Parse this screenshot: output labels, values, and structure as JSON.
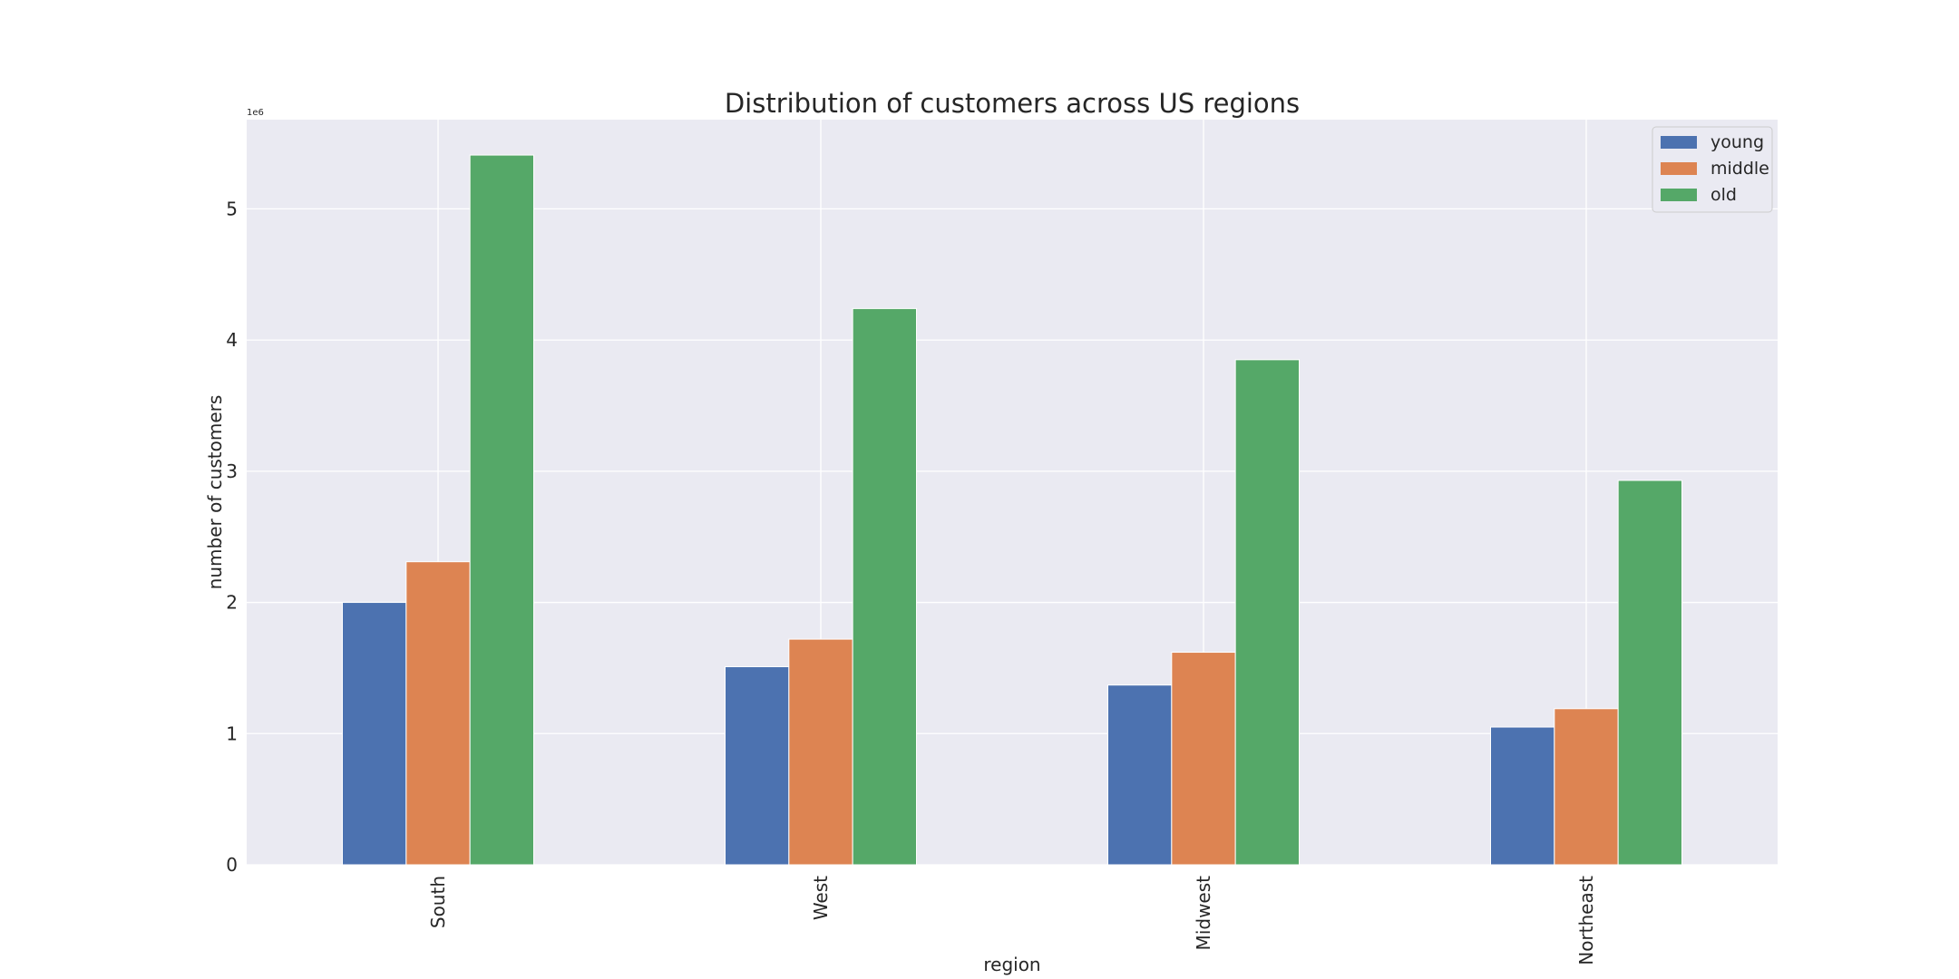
{
  "chart_data": {
    "type": "bar",
    "title": "Distribution of customers across US regions",
    "xlabel": "region",
    "ylabel": "number of customers",
    "y_offset_label": "1e6",
    "categories": [
      "South",
      "West",
      "Midwest",
      "Northeast"
    ],
    "series": [
      {
        "name": "young",
        "color": "#4c72b0",
        "values": [
          2.0,
          1.51,
          1.37,
          1.05
        ]
      },
      {
        "name": "middle",
        "color": "#dd8452",
        "values": [
          2.31,
          1.72,
          1.62,
          1.19
        ]
      },
      {
        "name": "old",
        "color": "#55a868",
        "values": [
          5.41,
          4.24,
          3.85,
          2.93
        ]
      }
    ],
    "yticks": [
      0,
      1,
      2,
      3,
      4,
      5
    ],
    "ylim": [
      0,
      5.68
    ],
    "grid": true,
    "legend_position": "top-right",
    "tick_label_rotation": "vertical"
  }
}
